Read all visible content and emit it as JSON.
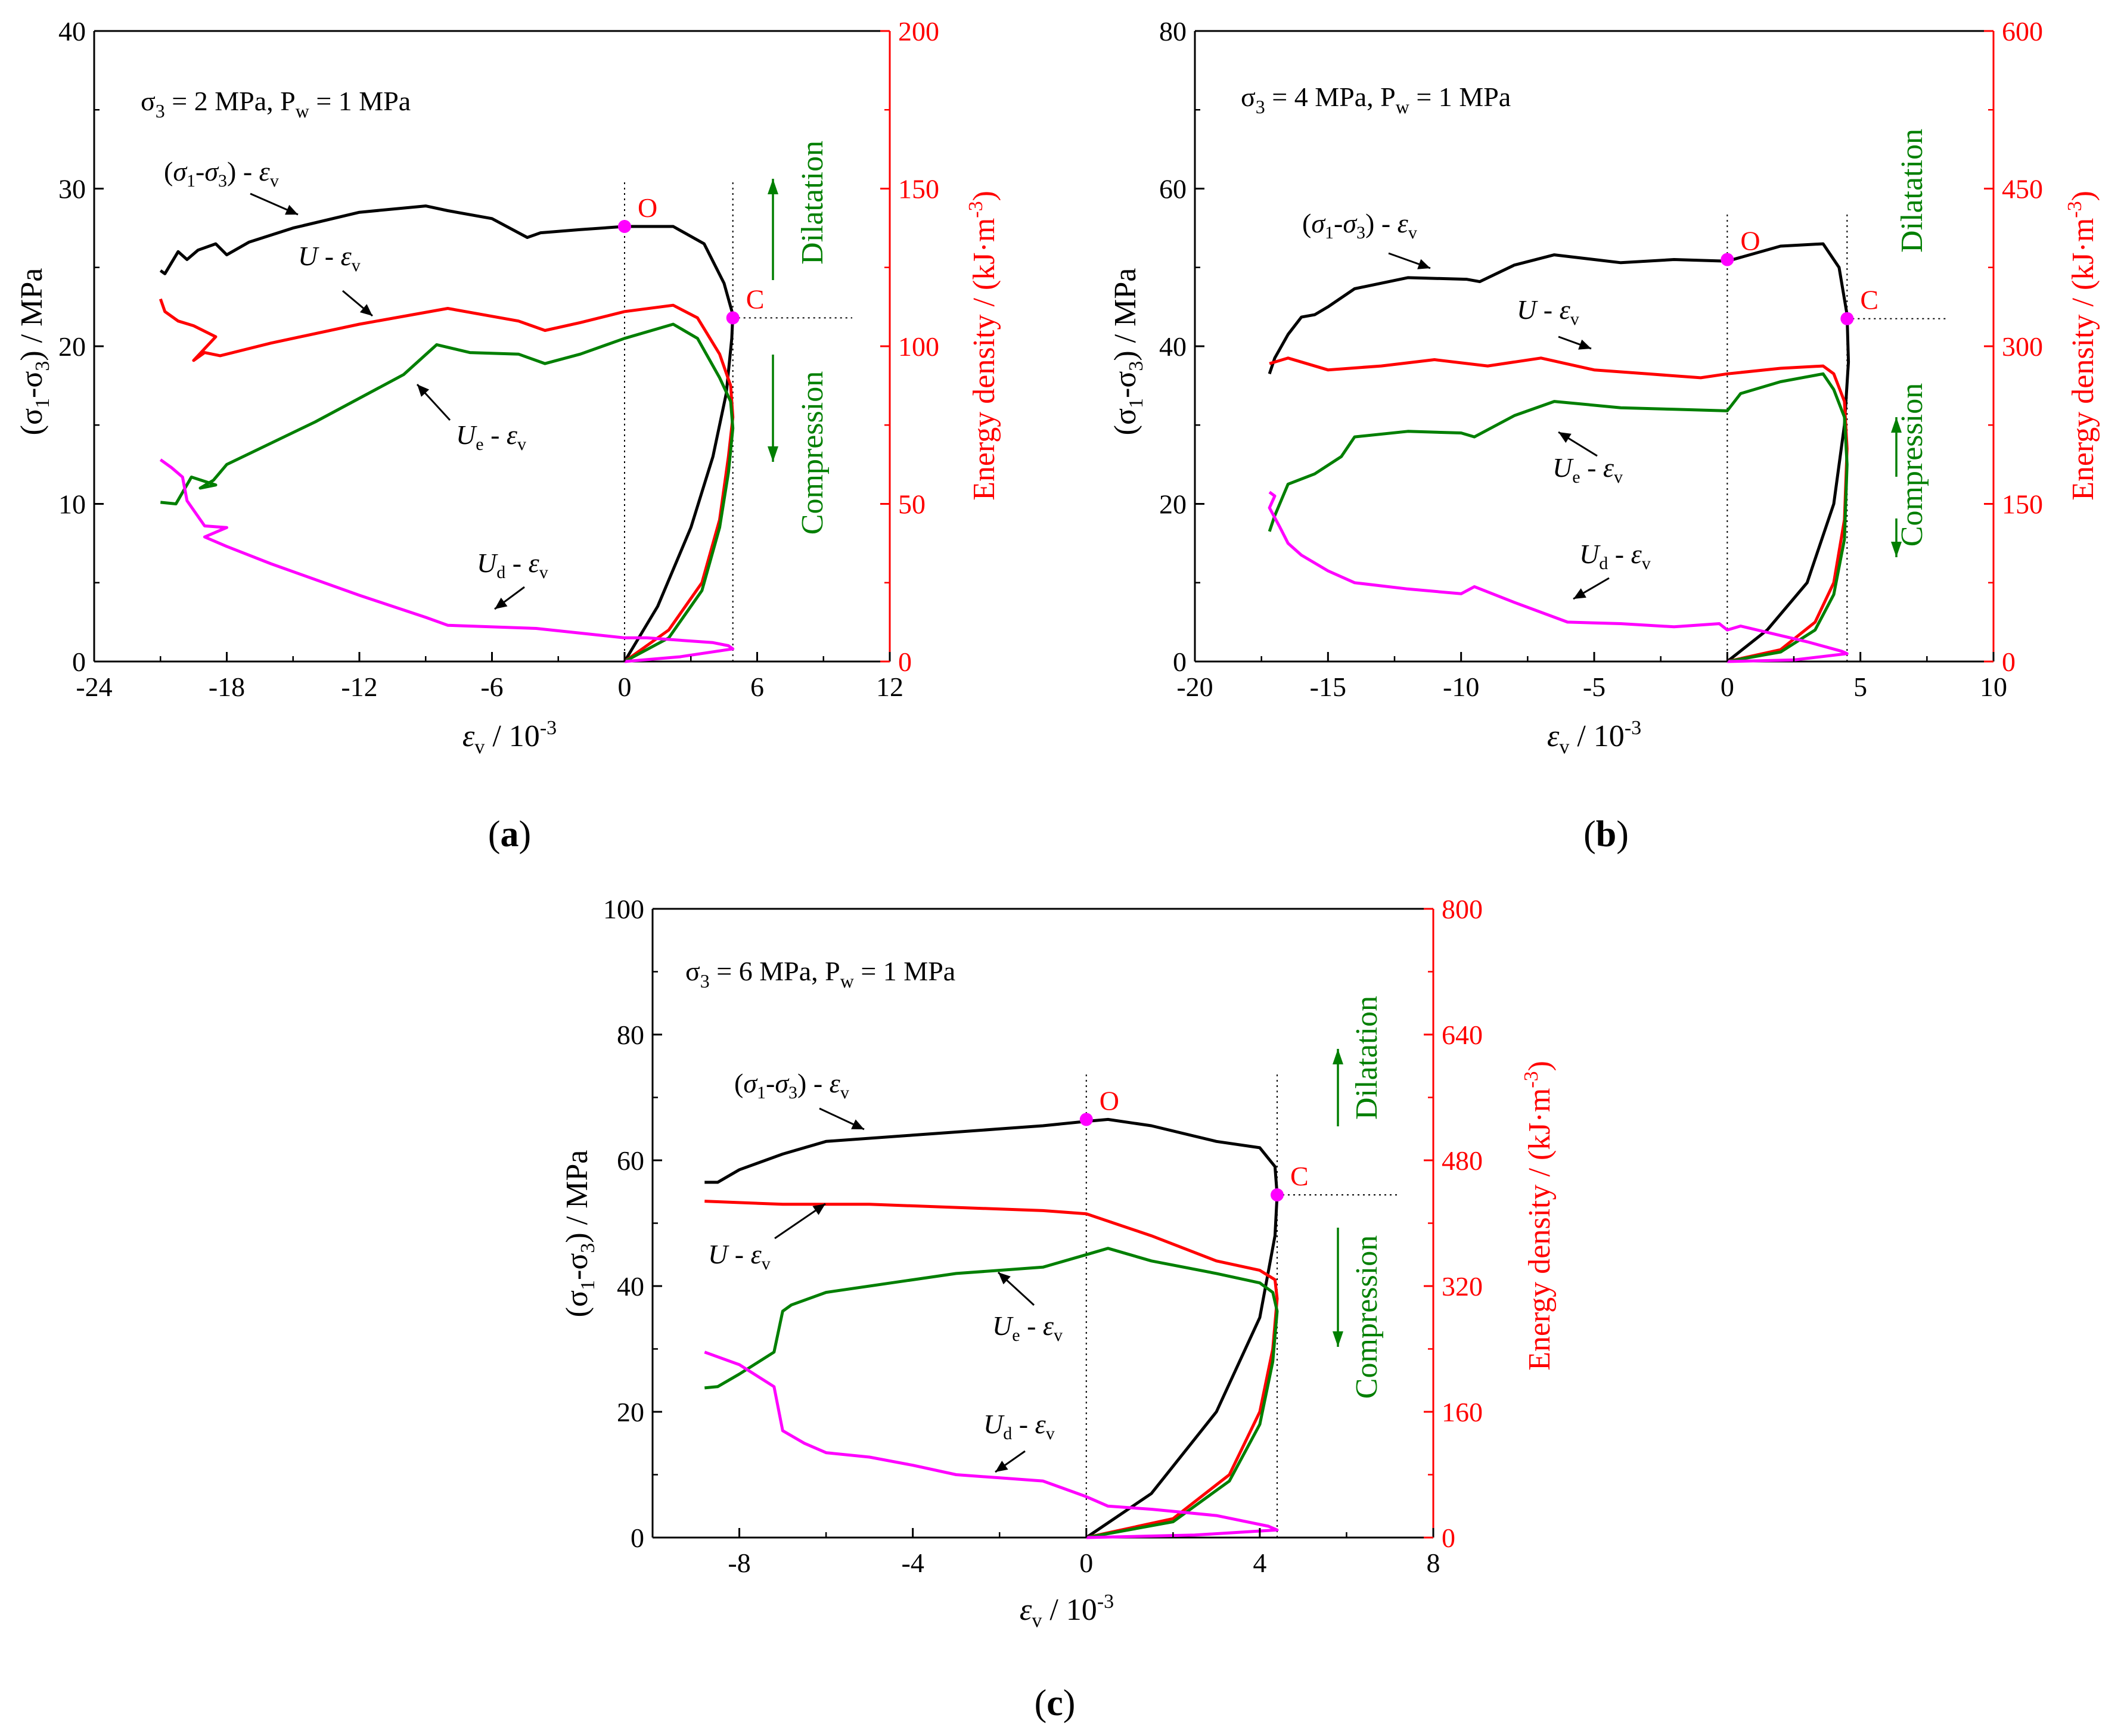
{
  "chart_data": [
    {
      "id": "a",
      "type": "line",
      "panel_label": "(a)",
      "condition": "σ3 = 2 MPa, Pw = 1 MPa",
      "xlabel": "εv / 10-3",
      "ylabel_left": "(σ1-σ3) / MPa",
      "ylabel_right": "Energy density / (kJ·m-3)",
      "xlim": [
        -24,
        12
      ],
      "ylim_left": [
        0,
        40
      ],
      "ylim_right": [
        0,
        200
      ],
      "xticks": [
        -24,
        -18,
        -12,
        -6,
        0,
        6,
        12
      ],
      "yticks_left": [
        0,
        10,
        20,
        30,
        40
      ],
      "yticks_right": [
        0,
        50,
        100,
        150,
        200
      ],
      "dilatation_label": "Dilatation",
      "compression_label": "Compression",
      "points": [
        {
          "label": "O",
          "x": 0,
          "y": 27.6
        },
        {
          "label": "C",
          "x": 4.9,
          "y": 21.8
        }
      ],
      "curve_labels": {
        "stress": "(σ1-σ3) - εv",
        "U": "U - εv",
        "Ue": "Ue - εv",
        "Ud": "Ud - εv"
      },
      "series": [
        {
          "key": "stress",
          "axis": "left",
          "color": "#000000",
          "x": [
            0,
            1.5,
            3.0,
            4.0,
            4.6,
            4.85,
            4.9,
            4.5,
            3.6,
            2.2,
            1.5,
            0,
            -2.0,
            -3.8,
            -4.4,
            -6.0,
            -8.0,
            -9.0,
            -12.0,
            -15.0,
            -17.0,
            -18.0,
            -18.5,
            -19.3,
            -19.8,
            -20.2,
            -20.8,
            -21.0
          ],
          "y": [
            0,
            3.5,
            8.5,
            13.0,
            17.0,
            20.5,
            22.0,
            24.0,
            26.5,
            27.6,
            27.6,
            27.6,
            27.4,
            27.2,
            26.9,
            28.1,
            28.6,
            28.9,
            28.5,
            27.5,
            26.6,
            25.8,
            26.5,
            26.1,
            25.5,
            26.0,
            24.6,
            24.8
          ]
        },
        {
          "key": "U",
          "axis": "left",
          "color": "#ff0000",
          "x": [
            0,
            2.0,
            3.5,
            4.3,
            4.7,
            4.9,
            4.8,
            4.3,
            3.3,
            2.2,
            0,
            -2.0,
            -3.6,
            -4.8,
            -8.0,
            -12.0,
            -16.0,
            -18.3,
            -19.0,
            -19.5,
            -18.5,
            -19.5,
            -20.2,
            -20.8,
            -21.0
          ],
          "y": [
            0,
            2.0,
            5.0,
            9.0,
            13.0,
            15.5,
            17.5,
            19.5,
            21.8,
            22.6,
            22.2,
            21.5,
            21.0,
            21.6,
            22.4,
            21.4,
            20.2,
            19.4,
            19.6,
            19.1,
            20.6,
            21.3,
            21.6,
            22.2,
            23.0
          ]
        },
        {
          "key": "Ue",
          "axis": "left",
          "color": "#007f00",
          "x": [
            0,
            2.0,
            3.5,
            4.3,
            4.7,
            4.9,
            4.8,
            4.3,
            3.3,
            2.2,
            0,
            -2.0,
            -3.6,
            -4.8,
            -7.0,
            -8.5,
            -10.0,
            -14.0,
            -18.0,
            -18.6,
            -19.2,
            -18.5,
            -19.6,
            -20.3,
            -21.0
          ],
          "y": [
            0,
            1.5,
            4.5,
            8.5,
            12.0,
            14.8,
            16.5,
            18.0,
            20.5,
            21.4,
            20.5,
            19.5,
            18.9,
            19.5,
            19.6,
            20.1,
            18.2,
            15.2,
            12.5,
            11.5,
            11.0,
            11.2,
            11.7,
            10.0,
            10.1
          ]
        },
        {
          "key": "Ud",
          "axis": "left",
          "color": "#ff00ff",
          "x": [
            0,
            2.5,
            4.9,
            4.7,
            4.0,
            1.0,
            0,
            -2.0,
            -4.0,
            -8.0,
            -9.0,
            -12.0,
            -16.0,
            -18.0,
            -19.0,
            -18.0,
            -19.0,
            -19.8,
            -20.0,
            -20.5,
            -21.0
          ],
          "y": [
            0,
            0.3,
            0.8,
            1.0,
            1.2,
            1.5,
            1.5,
            1.8,
            2.1,
            2.3,
            2.8,
            4.2,
            6.2,
            7.3,
            7.9,
            8.5,
            8.6,
            10.2,
            11.7,
            12.3,
            12.8
          ]
        }
      ]
    },
    {
      "id": "b",
      "type": "line",
      "panel_label": "(b)",
      "condition": "σ3 = 4 MPa, Pw = 1 MPa",
      "xlabel": "εv / 10-3",
      "ylabel_left": "(σ1-σ3) / MPa",
      "ylabel_right": "Energy density / (kJ·m-3)",
      "xlim": [
        -20,
        10
      ],
      "ylim_left": [
        0,
        80
      ],
      "ylim_right": [
        0,
        600
      ],
      "xticks": [
        -20,
        -15,
        -10,
        -5,
        0,
        5,
        10
      ],
      "yticks_left": [
        0,
        20,
        40,
        60,
        80
      ],
      "yticks_right": [
        0,
        150,
        300,
        450,
        600
      ],
      "dilatation_label": "Dilatation",
      "compression_label": "Compression",
      "points": [
        {
          "label": "O",
          "x": 0,
          "y": 51.0
        },
        {
          "label": "C",
          "x": 4.5,
          "y": 43.5
        }
      ],
      "curve_labels": {
        "stress": "(σ1-σ3) - εv",
        "U": "U - εv",
        "Ue": "Ue - εv",
        "Ud": "Ud - εv"
      },
      "series": [
        {
          "key": "stress",
          "axis": "left",
          "color": "#000000",
          "x": [
            0,
            1.5,
            3.0,
            4.0,
            4.4,
            4.55,
            4.5,
            4.2,
            3.6,
            2.0,
            0,
            -2.0,
            -4.0,
            -6.5,
            -8.0,
            -9.3,
            -9.8,
            -12.0,
            -14.0,
            -15.0,
            -15.5,
            -16.0,
            -16.5,
            -17.0,
            -17.2
          ],
          "y": [
            0,
            4.0,
            10.0,
            20.0,
            30.0,
            38.0,
            44.0,
            50.0,
            53.0,
            52.7,
            50.8,
            51.0,
            50.6,
            51.6,
            50.3,
            48.2,
            48.5,
            48.7,
            47.3,
            45.0,
            44.0,
            43.7,
            41.5,
            38.5,
            36.5
          ]
        },
        {
          "key": "U",
          "axis": "left",
          "color": "#ff0000",
          "x": [
            0,
            2.0,
            3.3,
            4.0,
            4.4,
            4.5,
            4.4,
            4.0,
            3.6,
            2.0,
            0,
            -1.0,
            -3.0,
            -5.0,
            -7.0,
            -9.0,
            -11.0,
            -13.0,
            -15.0,
            -16.5,
            -17.0,
            -17.2
          ],
          "y": [
            0,
            1.5,
            5.0,
            10.0,
            18.0,
            27.0,
            33.0,
            36.5,
            37.5,
            37.2,
            36.5,
            36.0,
            36.5,
            37.0,
            38.5,
            37.5,
            38.3,
            37.5,
            37.0,
            38.5,
            38.0,
            37.8
          ]
        },
        {
          "key": "Ue",
          "axis": "left",
          "color": "#007f00",
          "x": [
            0,
            2.0,
            3.3,
            4.0,
            4.4,
            4.5,
            4.4,
            4.0,
            3.6,
            2.0,
            0.5,
            0,
            -2.0,
            -4.0,
            -6.5,
            -8.0,
            -9.5,
            -10.0,
            -12.0,
            -14.0,
            -14.5,
            -15.5,
            -16.5,
            -17.0,
            -17.2
          ],
          "y": [
            0,
            1.2,
            4.0,
            8.5,
            15.5,
            25.0,
            31.0,
            34.5,
            36.5,
            35.5,
            34.0,
            31.8,
            32.0,
            32.2,
            33.0,
            31.2,
            28.5,
            29.0,
            29.2,
            28.5,
            26.0,
            23.8,
            22.5,
            18.5,
            16.5
          ]
        },
        {
          "key": "Ud",
          "axis": "left",
          "color": "#ff00ff",
          "x": [
            0,
            2.5,
            4.5,
            4.3,
            3.0,
            0.5,
            0,
            -0.3,
            -2.0,
            -4.0,
            -6.0,
            -8.0,
            -9.5,
            -10.0,
            -12.0,
            -14.0,
            -15.0,
            -16.0,
            -16.5,
            -16.8,
            -17.2,
            -17.0,
            -17.2
          ],
          "y": [
            0,
            0.2,
            1.0,
            1.3,
            2.5,
            4.5,
            4.0,
            4.8,
            4.4,
            4.8,
            5.0,
            7.5,
            9.5,
            8.6,
            9.2,
            10.0,
            11.5,
            13.5,
            15.0,
            17.0,
            19.5,
            21.0,
            21.5
          ]
        }
      ]
    },
    {
      "id": "c",
      "type": "line",
      "panel_label": "(c)",
      "condition": "σ3 = 6 MPa, Pw = 1 MPa",
      "xlabel": "εv / 10-3",
      "ylabel_left": "(σ1-σ3) / MPa",
      "ylabel_right": "Energy density / (kJ·m-3)",
      "xlim": [
        -10,
        8
      ],
      "ylim_left": [
        0,
        100
      ],
      "ylim_right": [
        0,
        800
      ],
      "xticks": [
        -8,
        -4,
        0,
        4,
        8
      ],
      "yticks_left": [
        0,
        20,
        40,
        60,
        80,
        100
      ],
      "yticks_right": [
        0,
        160,
        320,
        480,
        640,
        800
      ],
      "dilatation_label": "Dilatation",
      "compression_label": "Compression",
      "points": [
        {
          "label": "O",
          "x": 0,
          "y": 66.5
        },
        {
          "label": "C",
          "x": 4.4,
          "y": 54.5
        }
      ],
      "curve_labels": {
        "stress": "(σ1-σ3) - εv",
        "U": "U - εv",
        "Ue": "Ue - εv",
        "Ud": "Ud - εv"
      },
      "series": [
        {
          "key": "stress",
          "axis": "left",
          "color": "#000000",
          "x": [
            0,
            1.5,
            3.0,
            4.0,
            4.35,
            4.4,
            4.35,
            4.0,
            3.0,
            1.5,
            0.5,
            0,
            -1.0,
            -2.0,
            -4.0,
            -6.0,
            -7.0,
            -8.0,
            -8.5,
            -8.8
          ],
          "y": [
            0,
            7.0,
            20.0,
            35.0,
            48.0,
            54.5,
            59.0,
            62.0,
            63.0,
            65.5,
            66.5,
            66.2,
            65.5,
            65.0,
            64.0,
            63.0,
            61.0,
            58.5,
            56.5,
            56.5
          ]
        },
        {
          "key": "U",
          "axis": "left",
          "color": "#ff0000",
          "x": [
            0,
            2.0,
            3.3,
            4.0,
            4.3,
            4.4,
            4.35,
            4.0,
            3.0,
            1.5,
            0,
            -1.0,
            -3.0,
            -5.0,
            -7.0,
            -8.8
          ],
          "y": [
            0,
            3.0,
            10.0,
            20.0,
            30.0,
            38.0,
            41.0,
            42.5,
            44.0,
            48.0,
            51.5,
            52.0,
            52.5,
            53.0,
            53.0,
            53.5
          ]
        },
        {
          "key": "Ue",
          "axis": "left",
          "color": "#007f00",
          "x": [
            0,
            2.0,
            3.3,
            4.0,
            4.3,
            4.4,
            4.3,
            4.0,
            3.0,
            1.5,
            0.5,
            0,
            -1.0,
            -2.0,
            -3.0,
            -4.5,
            -6.0,
            -6.8,
            -7.0,
            -7.2,
            -8.0,
            -8.5,
            -8.8
          ],
          "y": [
            0,
            2.5,
            9.0,
            18.0,
            28.0,
            36.0,
            39.0,
            40.5,
            42.0,
            44.0,
            46.0,
            45.0,
            43.0,
            42.5,
            42.0,
            40.5,
            39.0,
            37.0,
            36.0,
            29.5,
            26.0,
            24.0,
            23.8
          ]
        },
        {
          "key": "Ud",
          "axis": "left",
          "color": "#ff00ff",
          "x": [
            0,
            2.5,
            4.4,
            4.2,
            3.0,
            1.5,
            0.5,
            0,
            -1.0,
            -2.0,
            -3.0,
            -4.0,
            -5.0,
            -6.0,
            -6.5,
            -7.0,
            -7.2,
            -8.0,
            -8.8
          ],
          "y": [
            0,
            0.4,
            1.2,
            1.8,
            3.5,
            4.5,
            5.0,
            6.5,
            9.0,
            9.5,
            10.0,
            11.5,
            12.8,
            13.5,
            15.0,
            17.0,
            24.0,
            27.5,
            29.5
          ]
        }
      ]
    }
  ]
}
